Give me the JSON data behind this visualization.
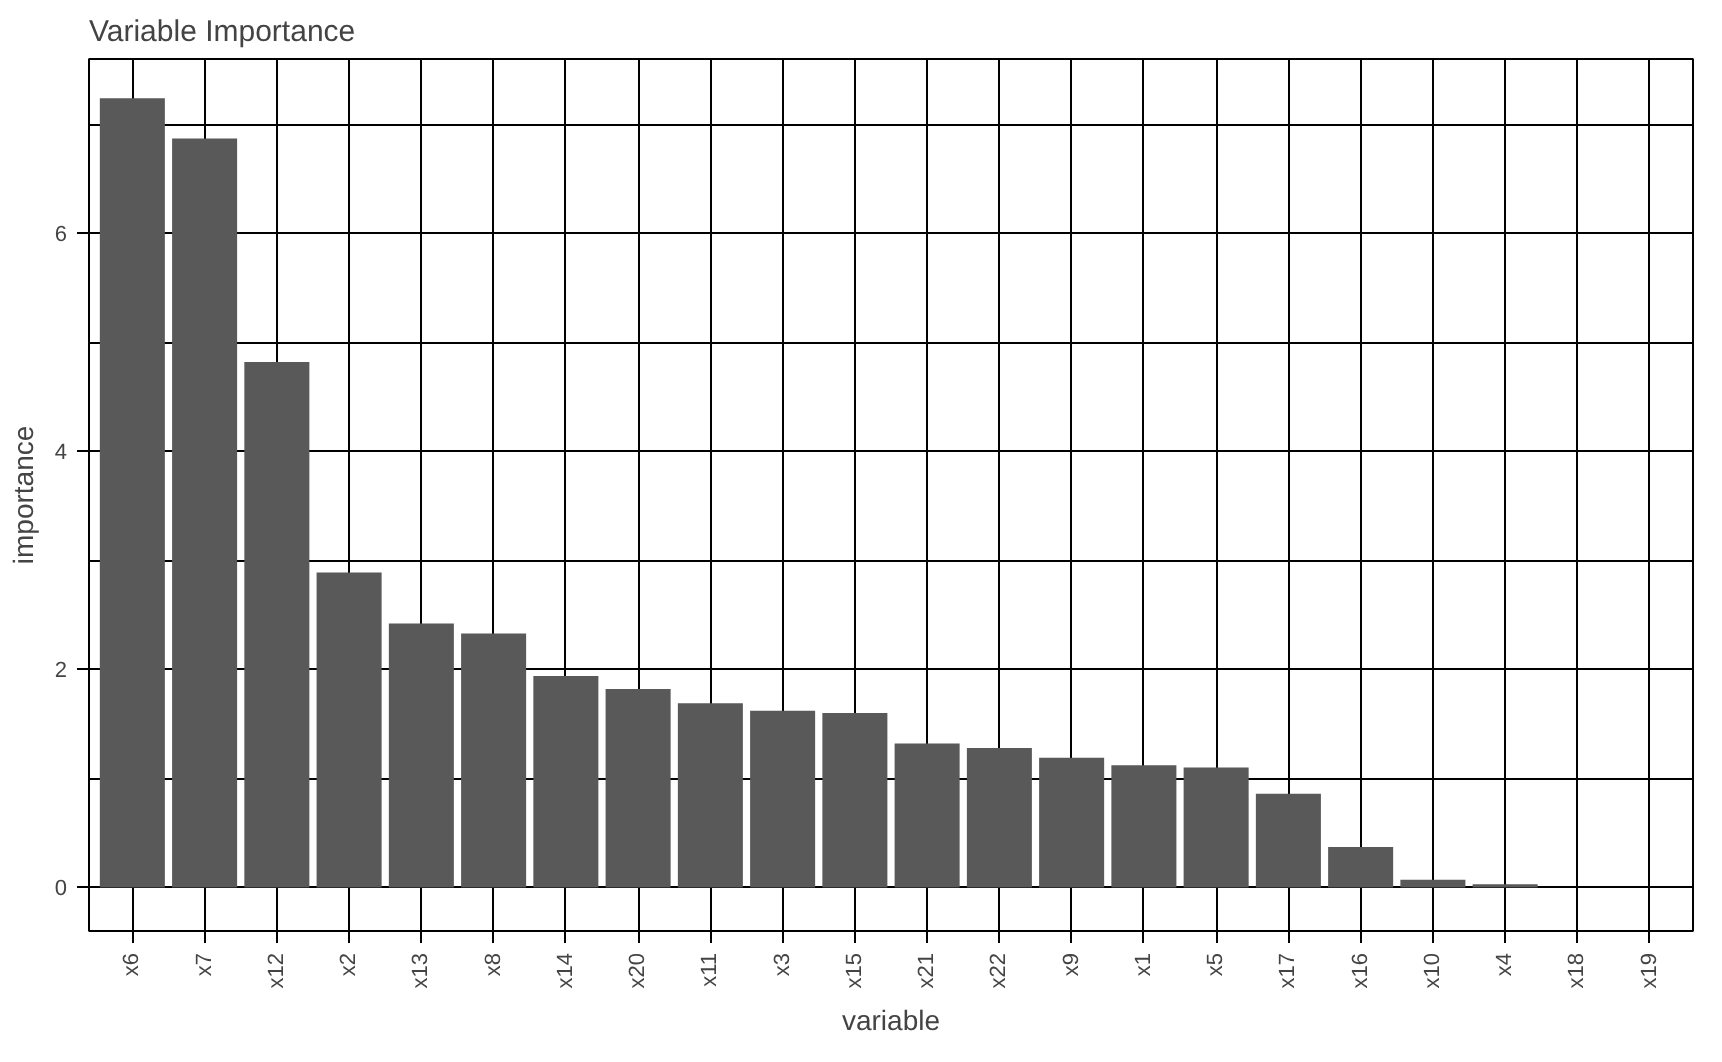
{
  "chart_data": {
    "type": "bar",
    "title": "Variable Importance",
    "xlabel": "variable",
    "ylabel": "importance",
    "categories": [
      "x6",
      "x7",
      "x12",
      "x2",
      "x13",
      "x8",
      "x14",
      "x20",
      "x11",
      "x3",
      "x15",
      "x21",
      "x22",
      "x9",
      "x1",
      "x5",
      "x17",
      "x16",
      "x10",
      "x4",
      "x18",
      "x19"
    ],
    "values": [
      7.24,
      6.87,
      4.82,
      2.89,
      2.42,
      2.33,
      1.94,
      1.82,
      1.69,
      1.62,
      1.6,
      1.32,
      1.28,
      1.19,
      1.12,
      1.1,
      0.86,
      0.37,
      0.07,
      0.03,
      0,
      0
    ],
    "color": "#595959",
    "ylim": [
      -0.4,
      7.6
    ],
    "yticks": [
      0,
      {
        "value": 1,
        "label": null
      },
      2,
      {
        "value": 3,
        "label": null
      },
      4,
      {
        "value": 5,
        "label": null
      },
      6,
      {
        "value": 7,
        "label": null
      }
    ],
    "grid": true
  }
}
